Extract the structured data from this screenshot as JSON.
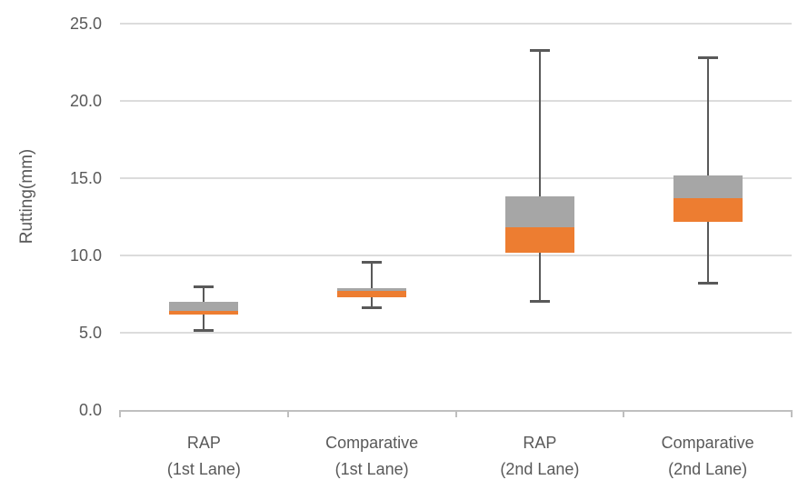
{
  "chart_data": {
    "type": "boxplot",
    "title": "",
    "xlabel": "",
    "ylabel": "Rutting(mm)",
    "ylim": [
      0,
      25
    ],
    "ytick_step": 5,
    "ytick_labels": [
      "0.0",
      "5.0",
      "10.0",
      "15.0",
      "20.0",
      "25.0"
    ],
    "grid": true,
    "legend_position": "none",
    "categories": [
      {
        "label_line1": "RAP",
        "label_line2": "(1st Lane)",
        "whisker_min": 5.1,
        "q1": 6.2,
        "median": 6.4,
        "q3": 7.0,
        "whisker_max": 8.0
      },
      {
        "label_line1": "Comparative",
        "label_line2": "(1st Lane)",
        "whisker_min": 6.6,
        "q1": 7.3,
        "median": 7.7,
        "q3": 7.9,
        "whisker_max": 9.6
      },
      {
        "label_line1": "RAP",
        "label_line2": "(2nd Lane)",
        "whisker_min": 7.0,
        "q1": 10.2,
        "median": 11.8,
        "q3": 13.8,
        "whisker_max": 23.3
      },
      {
        "label_line1": "Comparative",
        "label_line2": "(2nd Lane)",
        "whisker_min": 8.2,
        "q1": 12.2,
        "median": 13.7,
        "q3": 15.2,
        "whisker_max": 22.8
      }
    ],
    "colors": {
      "box_lower_q1_to_median": "#ED7D31",
      "box_upper_median_to_q3": "#A6A6A6",
      "whisker": "#595959",
      "gridline": "#DCDCDC",
      "axis_line": "#BFBFBF",
      "text": "#595959"
    }
  }
}
